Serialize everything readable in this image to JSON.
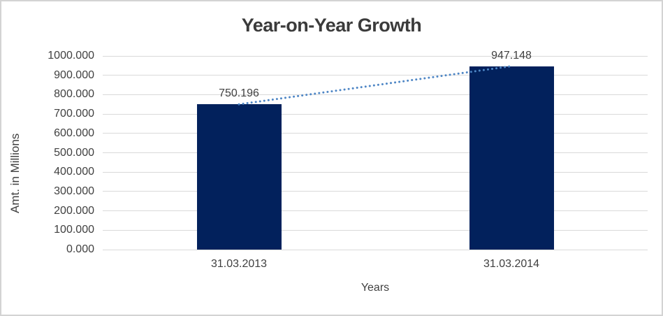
{
  "window": {
    "background": "#FFFFFF",
    "border_color": "#D3D3D3"
  },
  "chart_data": {
    "type": "bar",
    "title": "Year-on-Year Growth",
    "categories": [
      "31.03.2013",
      "31.03.2014"
    ],
    "values": [
      750.196,
      947.148
    ],
    "data_labels": [
      "750.196",
      "947.148"
    ],
    "xlabel": "Years",
    "ylabel": "Amt. in Millions",
    "ylim": [
      0,
      1000
    ],
    "ytick_step": 100,
    "ytick_labels": [
      "0.000",
      "100.000",
      "200.000",
      "300.000",
      "400.000",
      "500.000",
      "600.000",
      "700.000",
      "800.000",
      "900.000",
      "1000.000"
    ],
    "grid": true,
    "legend": "none",
    "trendline": {
      "style": "dotted",
      "between_categories": [
        "31.03.2013",
        "31.03.2014"
      ]
    },
    "colors": {
      "bar": "#02215C",
      "trendline": "#4E86C5",
      "gridline": "#D9D9D9",
      "label_text": "#404040",
      "title_text": "#3B3B3B"
    }
  }
}
